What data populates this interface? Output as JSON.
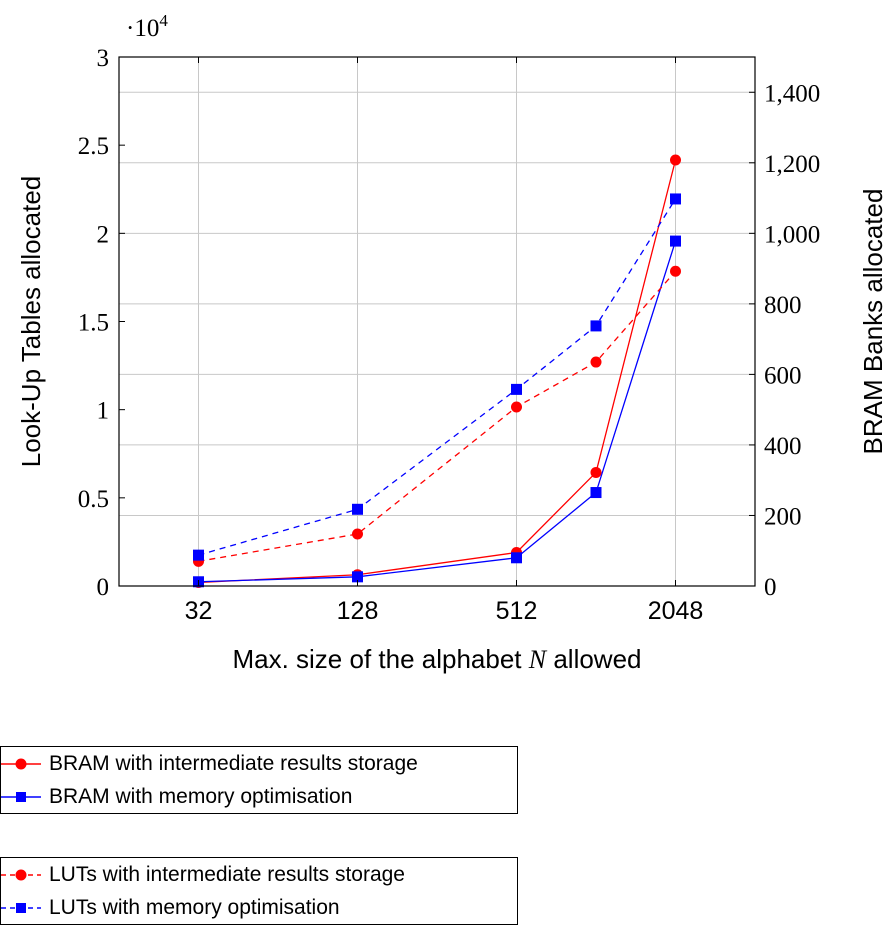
{
  "chart_data": {
    "type": "line",
    "title": "",
    "xlabel": "Max. size of the alphabet N allowed",
    "xlabel_parts": {
      "before": "Max. size of the alphabet ",
      "var": "N",
      "after": " allowed"
    },
    "ylabel_left": "Look-Up Tables allocated",
    "ylabel_right": "BRAM Banks allocated",
    "x_scale": "log2",
    "x_ticks": [
      32,
      128,
      512,
      2048
    ],
    "x_tick_labels": [
      "32",
      "128",
      "512",
      "2048"
    ],
    "xlim": [
      16,
      4096
    ],
    "left_axis": {
      "ylim": [
        0,
        30000
      ],
      "ticks": [
        0,
        5000,
        10000,
        15000,
        20000,
        25000,
        30000
      ],
      "tick_labels": [
        "0",
        "0.5",
        "1",
        "1.5",
        "2",
        "2.5",
        "3"
      ],
      "multiplier_label": "·10",
      "multiplier_exp": "4"
    },
    "right_axis": {
      "ylim": [
        0,
        1500
      ],
      "ticks": [
        0,
        200,
        400,
        600,
        800,
        1000,
        1200,
        1400
      ],
      "tick_labels": [
        "0",
        "200",
        "400",
        "600",
        "800",
        "1,000",
        "1,200",
        "1,400"
      ]
    },
    "grid": true,
    "legend_placement": "below",
    "series": [
      {
        "name": "BRAM with intermediate results storage",
        "axis": "right",
        "color": "#ff0000",
        "marker": "circle",
        "dashed": false,
        "x": [
          32,
          128,
          512,
          1024,
          2048
        ],
        "values": [
          10,
          32,
          95,
          322,
          1208
        ]
      },
      {
        "name": "BRAM with memory optimisation",
        "axis": "right",
        "color": "#0000ff",
        "marker": "square",
        "dashed": false,
        "x": [
          32,
          128,
          512,
          1024,
          2048
        ],
        "values": [
          12,
          26,
          80,
          265,
          978
        ]
      },
      {
        "name": "LUTs with intermediate results storage",
        "axis": "left",
        "color": "#ff0000",
        "marker": "circle",
        "dashed": true,
        "x": [
          32,
          128,
          512,
          1024,
          2048
        ],
        "values": [
          1400,
          2950,
          10150,
          12700,
          17850
        ]
      },
      {
        "name": "LUTs with memory optimisation",
        "axis": "left",
        "color": "#0000ff",
        "marker": "square",
        "dashed": true,
        "x": [
          32,
          128,
          512,
          1024,
          2048
        ],
        "values": [
          1750,
          4350,
          11150,
          14750,
          21950
        ]
      }
    ]
  }
}
